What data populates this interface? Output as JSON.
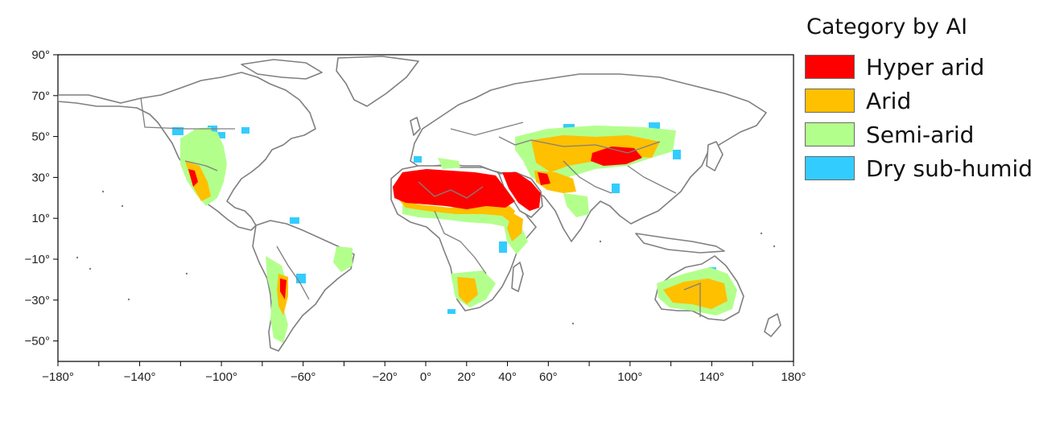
{
  "legend": {
    "title": "Category by AI",
    "items": [
      {
        "key": "hyper",
        "label": "Hyper arid",
        "color": "#ff0000"
      },
      {
        "key": "arid",
        "label": "Arid",
        "color": "#ffc000"
      },
      {
        "key": "semi",
        "label": "Semi-arid",
        "color": "#b3ff8c"
      },
      {
        "key": "dry",
        "label": "Dry sub-humid",
        "color": "#33ccff"
      }
    ]
  },
  "axes": {
    "x_range": [
      -180,
      180
    ],
    "y_range": [
      -60,
      90
    ],
    "x_ticks": [
      "−180°",
      "−140°",
      "−100°",
      "−60°",
      "−20°",
      "0°",
      "20°",
      "40°",
      "60°",
      "100°",
      "140°",
      "180°"
    ],
    "x_tick_values": [
      -180,
      -140,
      -100,
      -60,
      -20,
      0,
      20,
      40,
      60,
      100,
      140,
      180
    ],
    "y_ticks": [
      "90°",
      "70°",
      "50°",
      "30°",
      "10°",
      "−10°",
      "−30°",
      "−50°"
    ],
    "y_tick_values": [
      90,
      70,
      50,
      30,
      10,
      -10,
      -30,
      -50
    ]
  },
  "map": {
    "coastline_color": "#7f7f7f",
    "ocean_color": "#ffffff"
  }
}
